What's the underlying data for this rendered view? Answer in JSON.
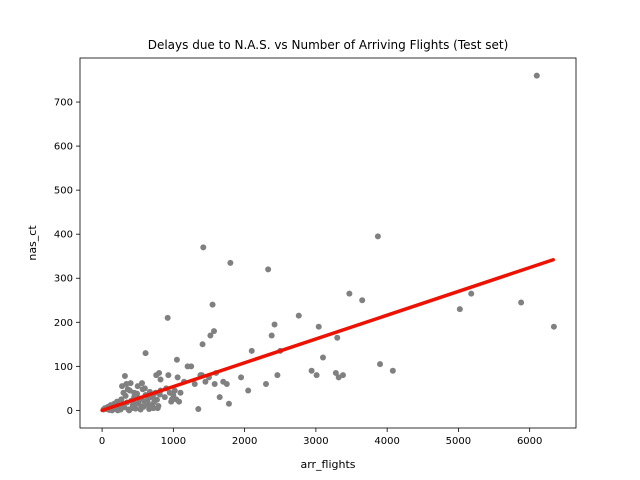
{
  "chart_data": {
    "type": "scatter",
    "title": "Delays due to N.A.S. vs Number of Arriving Flights (Test set)",
    "xlabel": "arr_flights",
    "ylabel": "nas_ct",
    "xlim": [
      -310,
      6650
    ],
    "ylim": [
      -40,
      800
    ],
    "xticks": [
      0,
      1000,
      2000,
      3000,
      4000,
      5000,
      6000
    ],
    "yticks": [
      0,
      100,
      200,
      300,
      400,
      500,
      600,
      700
    ],
    "grid": false,
    "legend": "none",
    "point_color": "#808080",
    "line_color": "#ee1100",
    "scatter_points": [
      [
        20,
        2
      ],
      [
        40,
        5
      ],
      [
        60,
        3
      ],
      [
        80,
        8
      ],
      [
        100,
        4
      ],
      [
        120,
        12
      ],
      [
        150,
        6
      ],
      [
        170,
        15
      ],
      [
        190,
        3
      ],
      [
        210,
        20
      ],
      [
        230,
        9
      ],
      [
        250,
        5
      ],
      [
        270,
        25
      ],
      [
        290,
        14
      ],
      [
        310,
        7
      ],
      [
        330,
        33
      ],
      [
        350,
        18
      ],
      [
        370,
        2
      ],
      [
        390,
        45
      ],
      [
        410,
        22
      ],
      [
        430,
        11
      ],
      [
        450,
        30
      ],
      [
        470,
        4
      ],
      [
        490,
        38
      ],
      [
        510,
        16
      ],
      [
        530,
        27
      ],
      [
        550,
        9
      ],
      [
        570,
        48
      ],
      [
        590,
        21
      ],
      [
        610,
        35
      ],
      [
        630,
        13
      ],
      [
        650,
        28
      ],
      [
        670,
        42
      ],
      [
        690,
        6
      ],
      [
        710,
        31
      ],
      [
        730,
        19
      ],
      [
        750,
        40
      ],
      [
        770,
        24
      ],
      [
        790,
        10
      ],
      [
        810,
        36
      ],
      [
        100,
        1
      ],
      [
        140,
        0
      ],
      [
        180,
        10
      ],
      [
        220,
        0
      ],
      [
        260,
        2
      ],
      [
        300,
        40
      ],
      [
        340,
        60
      ],
      [
        380,
        0
      ],
      [
        420,
        5
      ],
      [
        460,
        15
      ],
      [
        500,
        55
      ],
      [
        540,
        2
      ],
      [
        580,
        8
      ],
      [
        620,
        20
      ],
      [
        660,
        3
      ],
      [
        700,
        12
      ],
      [
        740,
        25
      ],
      [
        780,
        5
      ],
      [
        820,
        45
      ],
      [
        280,
        55
      ],
      [
        320,
        78
      ],
      [
        360,
        48
      ],
      [
        400,
        62
      ],
      [
        450,
        40
      ],
      [
        480,
        35
      ],
      [
        520,
        25
      ],
      [
        560,
        62
      ],
      [
        600,
        50
      ],
      [
        640,
        18
      ],
      [
        680,
        30
      ],
      [
        720,
        5
      ],
      [
        760,
        80
      ],
      [
        800,
        85
      ],
      [
        820,
        70
      ],
      [
        610,
        130
      ],
      [
        880,
        30
      ],
      [
        900,
        50
      ],
      [
        920,
        210
      ],
      [
        930,
        80
      ],
      [
        950,
        40
      ],
      [
        970,
        20
      ],
      [
        980,
        25
      ],
      [
        1000,
        35
      ],
      [
        1020,
        45
      ],
      [
        1040,
        25
      ],
      [
        1050,
        115
      ],
      [
        1060,
        75
      ],
      [
        1080,
        20
      ],
      [
        1100,
        40
      ],
      [
        1150,
        65
      ],
      [
        1200,
        100
      ],
      [
        1250,
        100
      ],
      [
        1300,
        60
      ],
      [
        1350,
        3
      ],
      [
        1380,
        80
      ],
      [
        1400,
        80
      ],
      [
        1410,
        150
      ],
      [
        1420,
        370
      ],
      [
        1450,
        65
      ],
      [
        1500,
        75
      ],
      [
        1520,
        170
      ],
      [
        1550,
        240
      ],
      [
        1570,
        180
      ],
      [
        1580,
        60
      ],
      [
        1600,
        85
      ],
      [
        1650,
        30
      ],
      [
        1700,
        65
      ],
      [
        1750,
        60
      ],
      [
        1780,
        15
      ],
      [
        1800,
        335
      ],
      [
        1950,
        75
      ],
      [
        2050,
        45
      ],
      [
        2100,
        135
      ],
      [
        2300,
        60
      ],
      [
        2330,
        320
      ],
      [
        2380,
        170
      ],
      [
        2420,
        195
      ],
      [
        2460,
        80
      ],
      [
        2500,
        135
      ],
      [
        2760,
        215
      ],
      [
        2940,
        90
      ],
      [
        3010,
        80
      ],
      [
        3040,
        190
      ],
      [
        3100,
        120
      ],
      [
        3280,
        85
      ],
      [
        3300,
        165
      ],
      [
        3320,
        75
      ],
      [
        3380,
        80
      ],
      [
        3470,
        265
      ],
      [
        3650,
        250
      ],
      [
        3870,
        395
      ],
      [
        3900,
        105
      ],
      [
        4080,
        90
      ],
      [
        5020,
        230
      ],
      [
        5180,
        265
      ],
      [
        5880,
        245
      ],
      [
        6100,
        760
      ],
      [
        6340,
        190
      ]
    ],
    "regression_line": [
      [
        0,
        0
      ],
      [
        6330,
        342
      ]
    ]
  }
}
